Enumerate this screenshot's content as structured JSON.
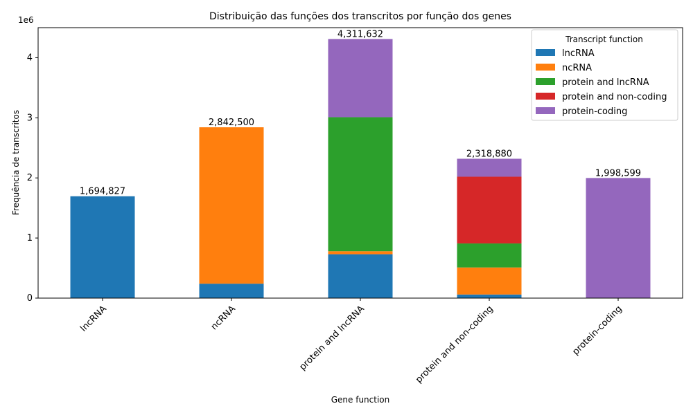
{
  "chart_data": {
    "type": "bar",
    "stacked": true,
    "title": "Distribuição das funções dos transcritos por função dos genes",
    "xlabel": "Gene function",
    "ylabel": "Frequência de transcritos",
    "y_offset_label": "1e6",
    "ylim": [
      0,
      4500000
    ],
    "yticks": [
      0,
      1000000,
      2000000,
      3000000,
      4000000
    ],
    "ytick_labels": [
      "0",
      "1",
      "2",
      "3",
      "4"
    ],
    "categories": [
      "lncRNA",
      "ncRNA",
      "protein and lncRNA",
      "protein and non-coding",
      "protein-coding"
    ],
    "series": [
      {
        "name": "lncRNA",
        "color": "#1f77b4",
        "values": [
          1694827,
          240000,
          730000,
          60000,
          0
        ]
      },
      {
        "name": "ncRNA",
        "color": "#ff7f0e",
        "values": [
          0,
          2602500,
          50000,
          450000,
          0
        ]
      },
      {
        "name": "protein and lncRNA",
        "color": "#2ca02c",
        "values": [
          0,
          0,
          2230000,
          400000,
          0
        ]
      },
      {
        "name": "protein and non-coding",
        "color": "#d62728",
        "values": [
          0,
          0,
          0,
          1110000,
          0
        ]
      },
      {
        "name": "protein-coding",
        "color": "#9467bd",
        "values": [
          0,
          0,
          1301632,
          298880,
          1998599
        ]
      }
    ],
    "totals": [
      1694827,
      2842500,
      4311632,
      2318880,
      1998599
    ],
    "total_labels": [
      "1,694,827",
      "2,842,500",
      "4,311,632",
      "2,318,880",
      "1,998,599"
    ],
    "legend": {
      "title": "Transcript function",
      "placement": "top-right"
    },
    "grid": false
  }
}
